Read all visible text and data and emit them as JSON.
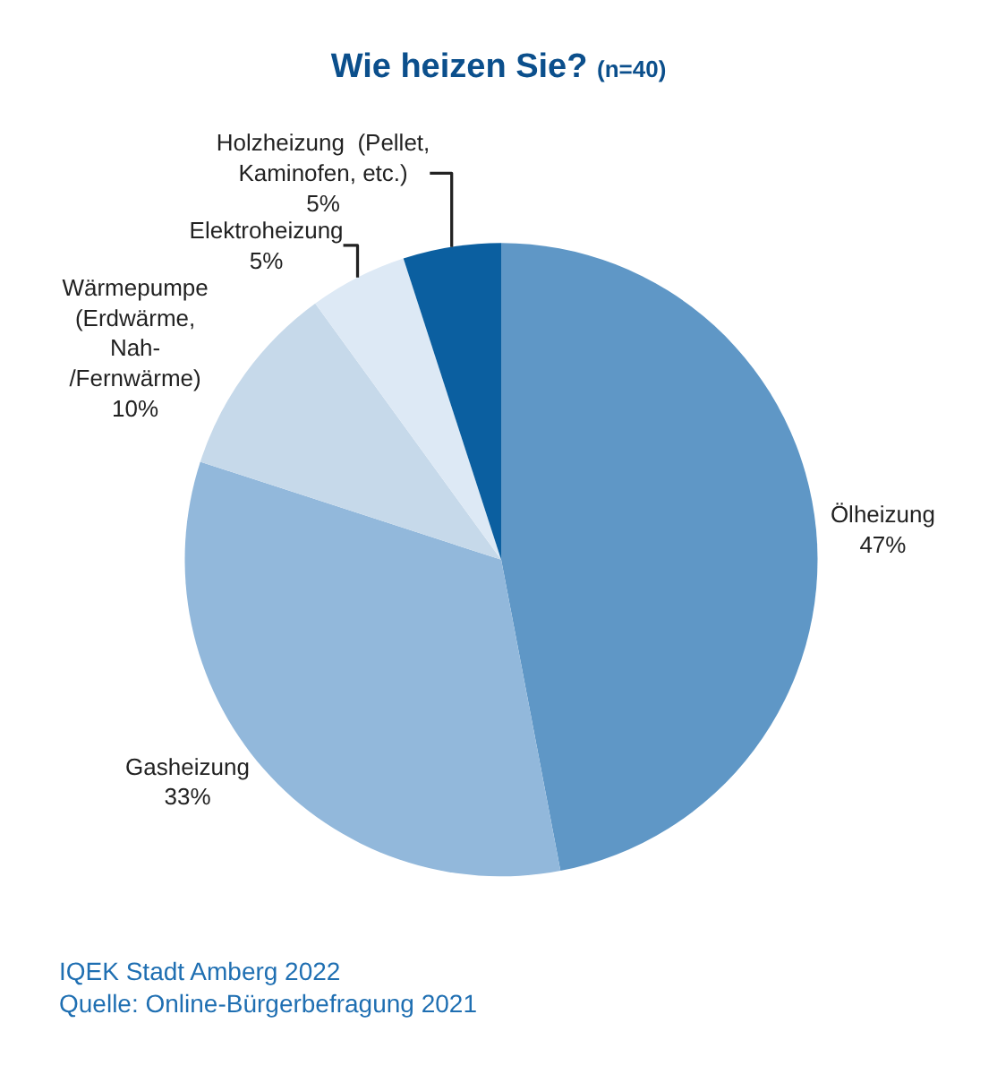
{
  "chart_data": {
    "type": "pie",
    "title": "Wie heizen Sie?",
    "subtitle": "(n=40)",
    "categories": [
      "Ölheizung",
      "Gasheizung",
      "Wärmepumpe\n(Erdwärme,\nNah-\n/Fernwärme)",
      "Elektroheizung",
      "Holzheizung  (Pellet,\nKaminofen, etc.)"
    ],
    "values": [
      47,
      33,
      10,
      5,
      5
    ],
    "value_labels": [
      "47%",
      "33%",
      "10%",
      "5%",
      "5%"
    ],
    "colors": [
      "#5f97c6",
      "#92b8db",
      "#c6d9ea",
      "#dde9f5",
      "#0b5fa0"
    ],
    "legend": false,
    "annotations": [
      "IQEK Stadt Amberg 2022",
      "Quelle: Online-Bürgerbefragung 2021"
    ]
  }
}
